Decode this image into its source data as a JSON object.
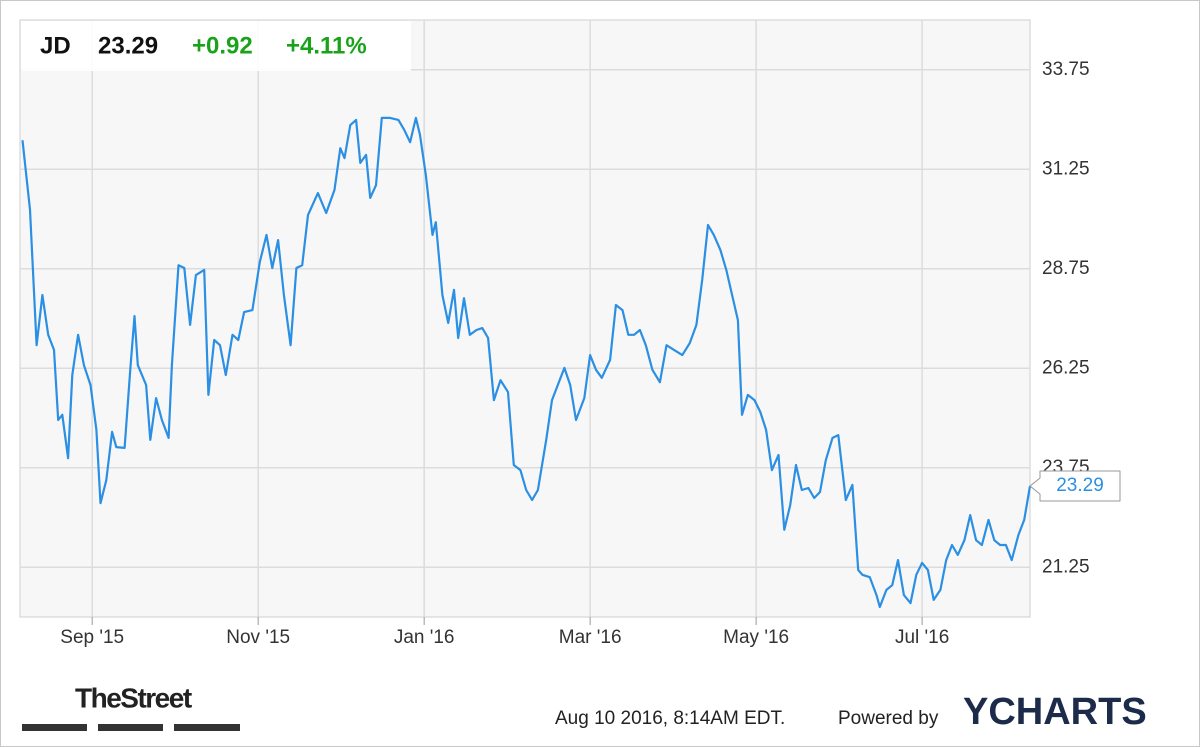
{
  "chart_data": {
    "type": "line",
    "ticker": "JD",
    "change": "+0.92",
    "change_pct": "+4.11%",
    "timestamp": "Aug 10 2016, 8:14AM EDT.",
    "powered_by": "Powered by",
    "brand": "YCHARTS",
    "publisher": "TheStreet",
    "xlim": [
      0.13,
      12.3
    ],
    "ylim": [
      20,
      35
    ],
    "xticks": [
      {
        "value": 1,
        "label": "Sep '15"
      },
      {
        "value": 3,
        "label": "Nov '15"
      },
      {
        "value": 5,
        "label": "Jan '16"
      },
      {
        "value": 7,
        "label": "Mar '16"
      },
      {
        "value": 9,
        "label": "May '16"
      },
      {
        "value": 11,
        "label": "Jul '16"
      }
    ],
    "yticks": [
      21.25,
      23.75,
      26.25,
      28.75,
      31.25,
      33.75
    ],
    "grid": true,
    "series": [
      {
        "color": "#2b8fe3",
        "x": [
          0.16,
          0.25,
          0.33,
          0.4,
          0.47,
          0.54,
          0.59,
          0.64,
          0.71,
          0.76,
          0.83,
          0.9,
          0.98,
          1.05,
          1.1,
          1.17,
          1.24,
          1.29,
          1.39,
          1.46,
          1.51,
          1.55,
          1.65,
          1.7,
          1.77,
          1.84,
          1.92,
          1.96,
          2.04,
          2.11,
          2.18,
          2.25,
          2.35,
          2.4,
          2.47,
          2.54,
          2.61,
          2.69,
          2.76,
          2.83,
          2.93,
          3.02,
          3.1,
          3.17,
          3.24,
          3.31,
          3.39,
          3.46,
          3.53,
          3.6,
          3.72,
          3.82,
          3.92,
          3.99,
          4.04,
          4.11,
          4.18,
          4.23,
          4.3,
          4.35,
          4.42,
          4.49,
          4.59,
          4.69,
          4.76,
          4.83,
          4.9,
          4.95,
          5.02,
          5.1,
          5.14,
          5.22,
          5.29,
          5.36,
          5.41,
          5.48,
          5.55,
          5.63,
          5.7,
          5.77,
          5.84,
          5.92,
          6.01,
          6.08,
          6.16,
          6.23,
          6.3,
          6.37,
          6.47,
          6.54,
          6.61,
          6.69,
          6.76,
          6.83,
          6.93,
          7.0,
          7.07,
          7.14,
          7.24,
          7.31,
          7.39,
          7.46,
          7.53,
          7.6,
          7.67,
          7.75,
          7.84,
          7.92,
          8.01,
          8.11,
          8.2,
          8.28,
          8.35,
          8.42,
          8.49,
          8.57,
          8.64,
          8.71,
          8.78,
          8.83,
          8.9,
          8.98,
          9.05,
          9.12,
          9.19,
          9.27,
          9.34,
          9.41,
          9.48,
          9.55,
          9.63,
          9.7,
          9.77,
          9.84,
          9.92,
          9.99,
          10.08,
          10.16,
          10.23,
          10.28,
          10.37,
          10.45,
          10.49,
          10.57,
          10.64,
          10.71,
          10.78,
          10.86,
          10.93,
          11.0,
          11.07,
          11.14,
          11.22,
          11.29,
          11.36,
          11.43,
          11.51,
          11.58,
          11.65,
          11.72,
          11.8,
          11.87,
          11.94,
          12.01,
          12.08,
          12.16,
          12.23,
          12.3
        ],
        "values": [
          31.98,
          30.23,
          26.83,
          28.09,
          27.09,
          26.71,
          24.95,
          25.08,
          23.99,
          26.08,
          27.09,
          26.33,
          25.83,
          24.7,
          22.86,
          23.44,
          24.65,
          24.27,
          24.25,
          26.26,
          27.56,
          26.33,
          25.83,
          24.45,
          25.5,
          24.95,
          24.5,
          26.33,
          28.84,
          28.77,
          27.34,
          28.59,
          28.72,
          25.58,
          26.96,
          26.83,
          26.08,
          27.09,
          26.96,
          27.66,
          27.71,
          28.92,
          29.6,
          28.77,
          29.47,
          28.09,
          26.83,
          28.77,
          28.84,
          30.1,
          30.65,
          30.15,
          30.73,
          31.78,
          31.53,
          32.36,
          32.49,
          31.41,
          31.61,
          30.53,
          30.85,
          32.54,
          32.54,
          32.49,
          32.24,
          31.93,
          32.54,
          32.11,
          31.11,
          29.6,
          29.92,
          28.09,
          27.39,
          28.22,
          27.01,
          28.01,
          27.09,
          27.21,
          27.26,
          27.01,
          25.45,
          25.95,
          25.65,
          23.82,
          23.69,
          23.19,
          22.94,
          23.19,
          24.45,
          25.45,
          25.83,
          26.26,
          25.83,
          24.95,
          25.5,
          26.58,
          26.21,
          26.01,
          26.46,
          27.84,
          27.71,
          27.09,
          27.09,
          27.21,
          26.83,
          26.21,
          25.9,
          26.83,
          26.71,
          26.58,
          26.88,
          27.34,
          28.47,
          29.85,
          29.6,
          29.22,
          28.72,
          28.09,
          27.46,
          25.08,
          25.58,
          25.45,
          25.15,
          24.7,
          23.69,
          24.07,
          22.19,
          22.81,
          23.82,
          23.19,
          23.24,
          22.99,
          23.14,
          23.94,
          24.5,
          24.57,
          22.94,
          23.32,
          21.18,
          21.06,
          21.0,
          20.55,
          20.25,
          20.68,
          20.8,
          21.43,
          20.55,
          20.35,
          21.06,
          21.36,
          21.18,
          20.43,
          20.68,
          21.43,
          21.81,
          21.56,
          21.93,
          22.56,
          21.93,
          21.81,
          22.44,
          21.93,
          21.81,
          21.81,
          21.43,
          22.06,
          22.44,
          23.29
        ]
      }
    ]
  }
}
